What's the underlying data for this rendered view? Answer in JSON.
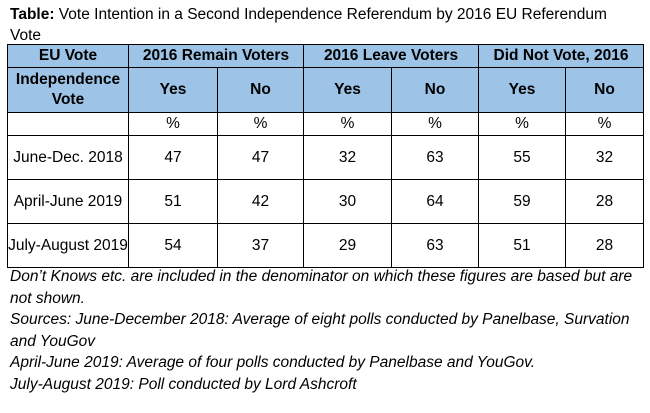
{
  "caption": {
    "prefix": "Table:",
    "text": " Vote Intention in a Second Independence Referendum by 2016 EU Referendum Vote"
  },
  "table": {
    "header_row1": {
      "eu_vote": "EU Vote",
      "groups": [
        "2016 Remain Voters",
        "2016 Leave Voters",
        "Did Not Vote, 2016"
      ]
    },
    "header_row2": {
      "label": "Independence Vote",
      "columns": [
        "Yes",
        "No",
        "Yes",
        "No",
        "Yes",
        "No"
      ]
    },
    "units": [
      "%",
      "%",
      "%",
      "%",
      "%",
      "%"
    ],
    "rows": [
      {
        "period": "June-Dec. 2018",
        "values": [
          "47",
          "47",
          "32",
          "63",
          "55",
          "32"
        ]
      },
      {
        "period": "April-June 2019",
        "values": [
          "51",
          "42",
          "30",
          "64",
          "59",
          "28"
        ]
      },
      {
        "period": "July-August 2019",
        "values": [
          "54",
          "37",
          "29",
          "63",
          "51",
          "28"
        ]
      }
    ]
  },
  "notes": [
    "Don’t Knows etc. are included in the denominator on which these figures are based but are not shown.",
    "Sources: June-December 2018: Average of eight polls conducted by Panelbase, Survation and YouGov",
    "April-June 2019: Average of four polls conducted by Panelbase and YouGov.",
    "July-August 2019: Poll conducted by Lord Ashcroft"
  ],
  "colors": {
    "header_fill": "#9dc3e6",
    "border": "#000000"
  }
}
